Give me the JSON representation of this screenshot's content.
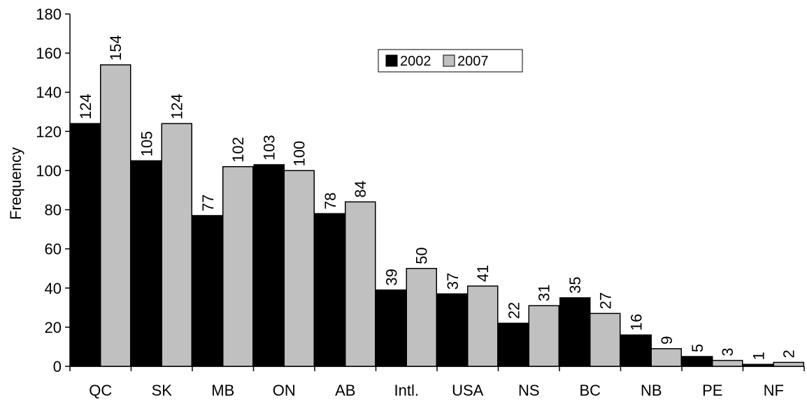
{
  "chart_data": {
    "type": "bar",
    "title": "",
    "xlabel": "",
    "ylabel": "Frequency",
    "ylim": [
      0,
      180
    ],
    "yticks": [
      0,
      20,
      40,
      60,
      80,
      100,
      120,
      140,
      160,
      180
    ],
    "categories": [
      "QC",
      "SK",
      "MB",
      "ON",
      "AB",
      "Intl.",
      "USA",
      "NS",
      "BC",
      "NB",
      "PE",
      "NF"
    ],
    "series": [
      {
        "name": "2002",
        "color": "#000000",
        "values": [
          124,
          105,
          77,
          103,
          78,
          39,
          37,
          22,
          35,
          16,
          5,
          1
        ]
      },
      {
        "name": "2007",
        "color": "#c0c0c0",
        "values": [
          154,
          124,
          102,
          100,
          84,
          50,
          41,
          31,
          27,
          9,
          3,
          2
        ]
      }
    ],
    "grid": false,
    "legend_position": "top-center"
  }
}
